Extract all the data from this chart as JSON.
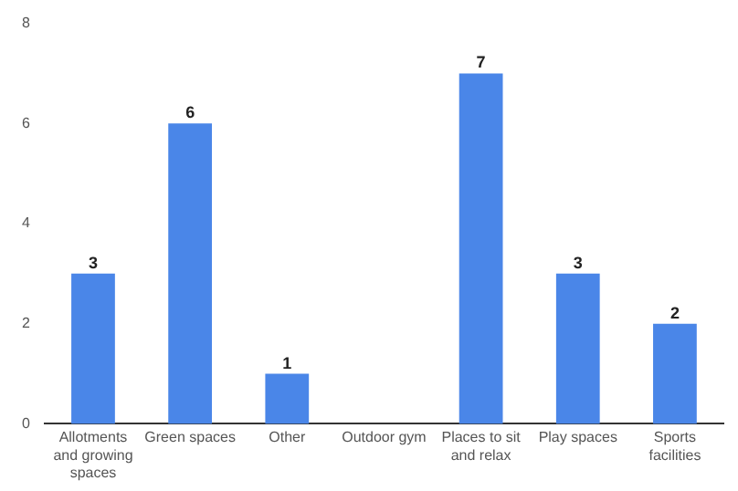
{
  "chart_data": {
    "type": "bar",
    "categories": [
      "Allotments and growing spaces",
      "Green spaces",
      "Other",
      "Outdoor gym",
      "Places to sit and relax",
      "Play spaces",
      "Sports facilities"
    ],
    "values": [
      3,
      6,
      1,
      0,
      7,
      3,
      2
    ],
    "value_labels": [
      "3",
      "6",
      "1",
      null,
      "7",
      "3",
      "2"
    ],
    "color": "#4a86e8",
    "ylim": [
      0,
      8
    ],
    "yticks": [
      0,
      2,
      4,
      6,
      8
    ],
    "grid": false,
    "legend": false
  }
}
